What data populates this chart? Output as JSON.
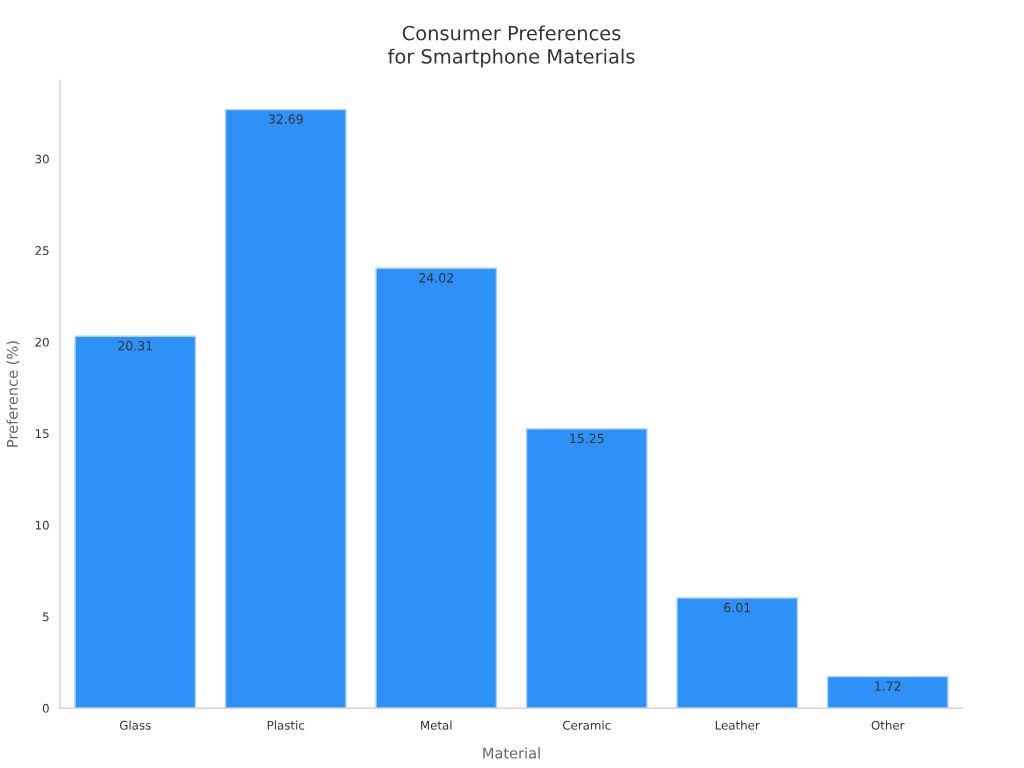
{
  "chart_data": {
    "type": "bar",
    "title": "Consumer Preferences\nfor Smartphone Materials",
    "xlabel": "Material",
    "ylabel": "Preference (%)",
    "categories": [
      "Glass",
      "Plastic",
      "Metal",
      "Ceramic",
      "Leather",
      "Other"
    ],
    "values": [
      20.31,
      32.69,
      24.02,
      15.25,
      6.01,
      1.72
    ],
    "color": "#2e91f7",
    "ylim": [
      0,
      34.3
    ],
    "yticks": [
      0,
      5,
      10,
      15,
      20,
      25,
      30
    ],
    "data_labels": true,
    "grid": false,
    "legend": false
  }
}
